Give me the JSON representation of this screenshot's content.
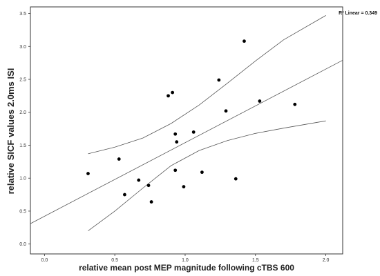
{
  "chart_data": {
    "type": "scatter",
    "title": "",
    "xlabel": "relative mean post MEP magnitude following cTBS 600",
    "ylabel": "relative SICF values 2.0ms ISI",
    "xlim": [
      -0.1,
      2.12
    ],
    "ylim": [
      -0.15,
      3.6
    ],
    "x_ticks": [
      "0.0",
      "0.5",
      "1.0",
      "1.5",
      "2.0"
    ],
    "y_ticks": [
      "0.0",
      "0.5",
      "1.0",
      "1.5",
      "2.0",
      "2.5",
      "3.0",
      "3.5"
    ],
    "grid": false,
    "annotation": "R² Linear = 0.349",
    "series": [
      {
        "points": [
          {
            "x": 0.31,
            "y": 1.07
          },
          {
            "x": 0.53,
            "y": 1.29
          },
          {
            "x": 0.57,
            "y": 0.75
          },
          {
            "x": 0.67,
            "y": 0.97
          },
          {
            "x": 0.74,
            "y": 0.89
          },
          {
            "x": 0.76,
            "y": 0.64
          },
          {
            "x": 0.88,
            "y": 2.25
          },
          {
            "x": 0.91,
            "y": 2.3
          },
          {
            "x": 0.93,
            "y": 1.67
          },
          {
            "x": 0.94,
            "y": 1.55
          },
          {
            "x": 0.93,
            "y": 1.12
          },
          {
            "x": 0.99,
            "y": 0.87
          },
          {
            "x": 1.06,
            "y": 1.7
          },
          {
            "x": 1.12,
            "y": 1.09
          },
          {
            "x": 1.24,
            "y": 2.49
          },
          {
            "x": 1.29,
            "y": 2.02
          },
          {
            "x": 1.36,
            "y": 0.99
          },
          {
            "x": 1.42,
            "y": 3.08
          },
          {
            "x": 1.53,
            "y": 2.17
          },
          {
            "x": 1.78,
            "y": 2.12
          }
        ]
      }
    ],
    "fit_line": {
      "x": [
        -0.1,
        2.12
      ],
      "y": [
        0.31,
        2.79
      ]
    },
    "ci_upper": {
      "x": [
        0.31,
        0.5,
        0.7,
        0.9,
        1.1,
        1.3,
        1.5,
        1.7,
        2.0
      ],
      "y": [
        1.37,
        1.47,
        1.61,
        1.83,
        2.11,
        2.44,
        2.78,
        3.1,
        3.47
      ]
    },
    "ci_lower": {
      "x": [
        0.31,
        0.5,
        0.7,
        0.9,
        1.1,
        1.3,
        1.5,
        1.7,
        2.0
      ],
      "y": [
        0.2,
        0.5,
        0.85,
        1.19,
        1.42,
        1.57,
        1.68,
        1.76,
        1.87
      ]
    }
  }
}
